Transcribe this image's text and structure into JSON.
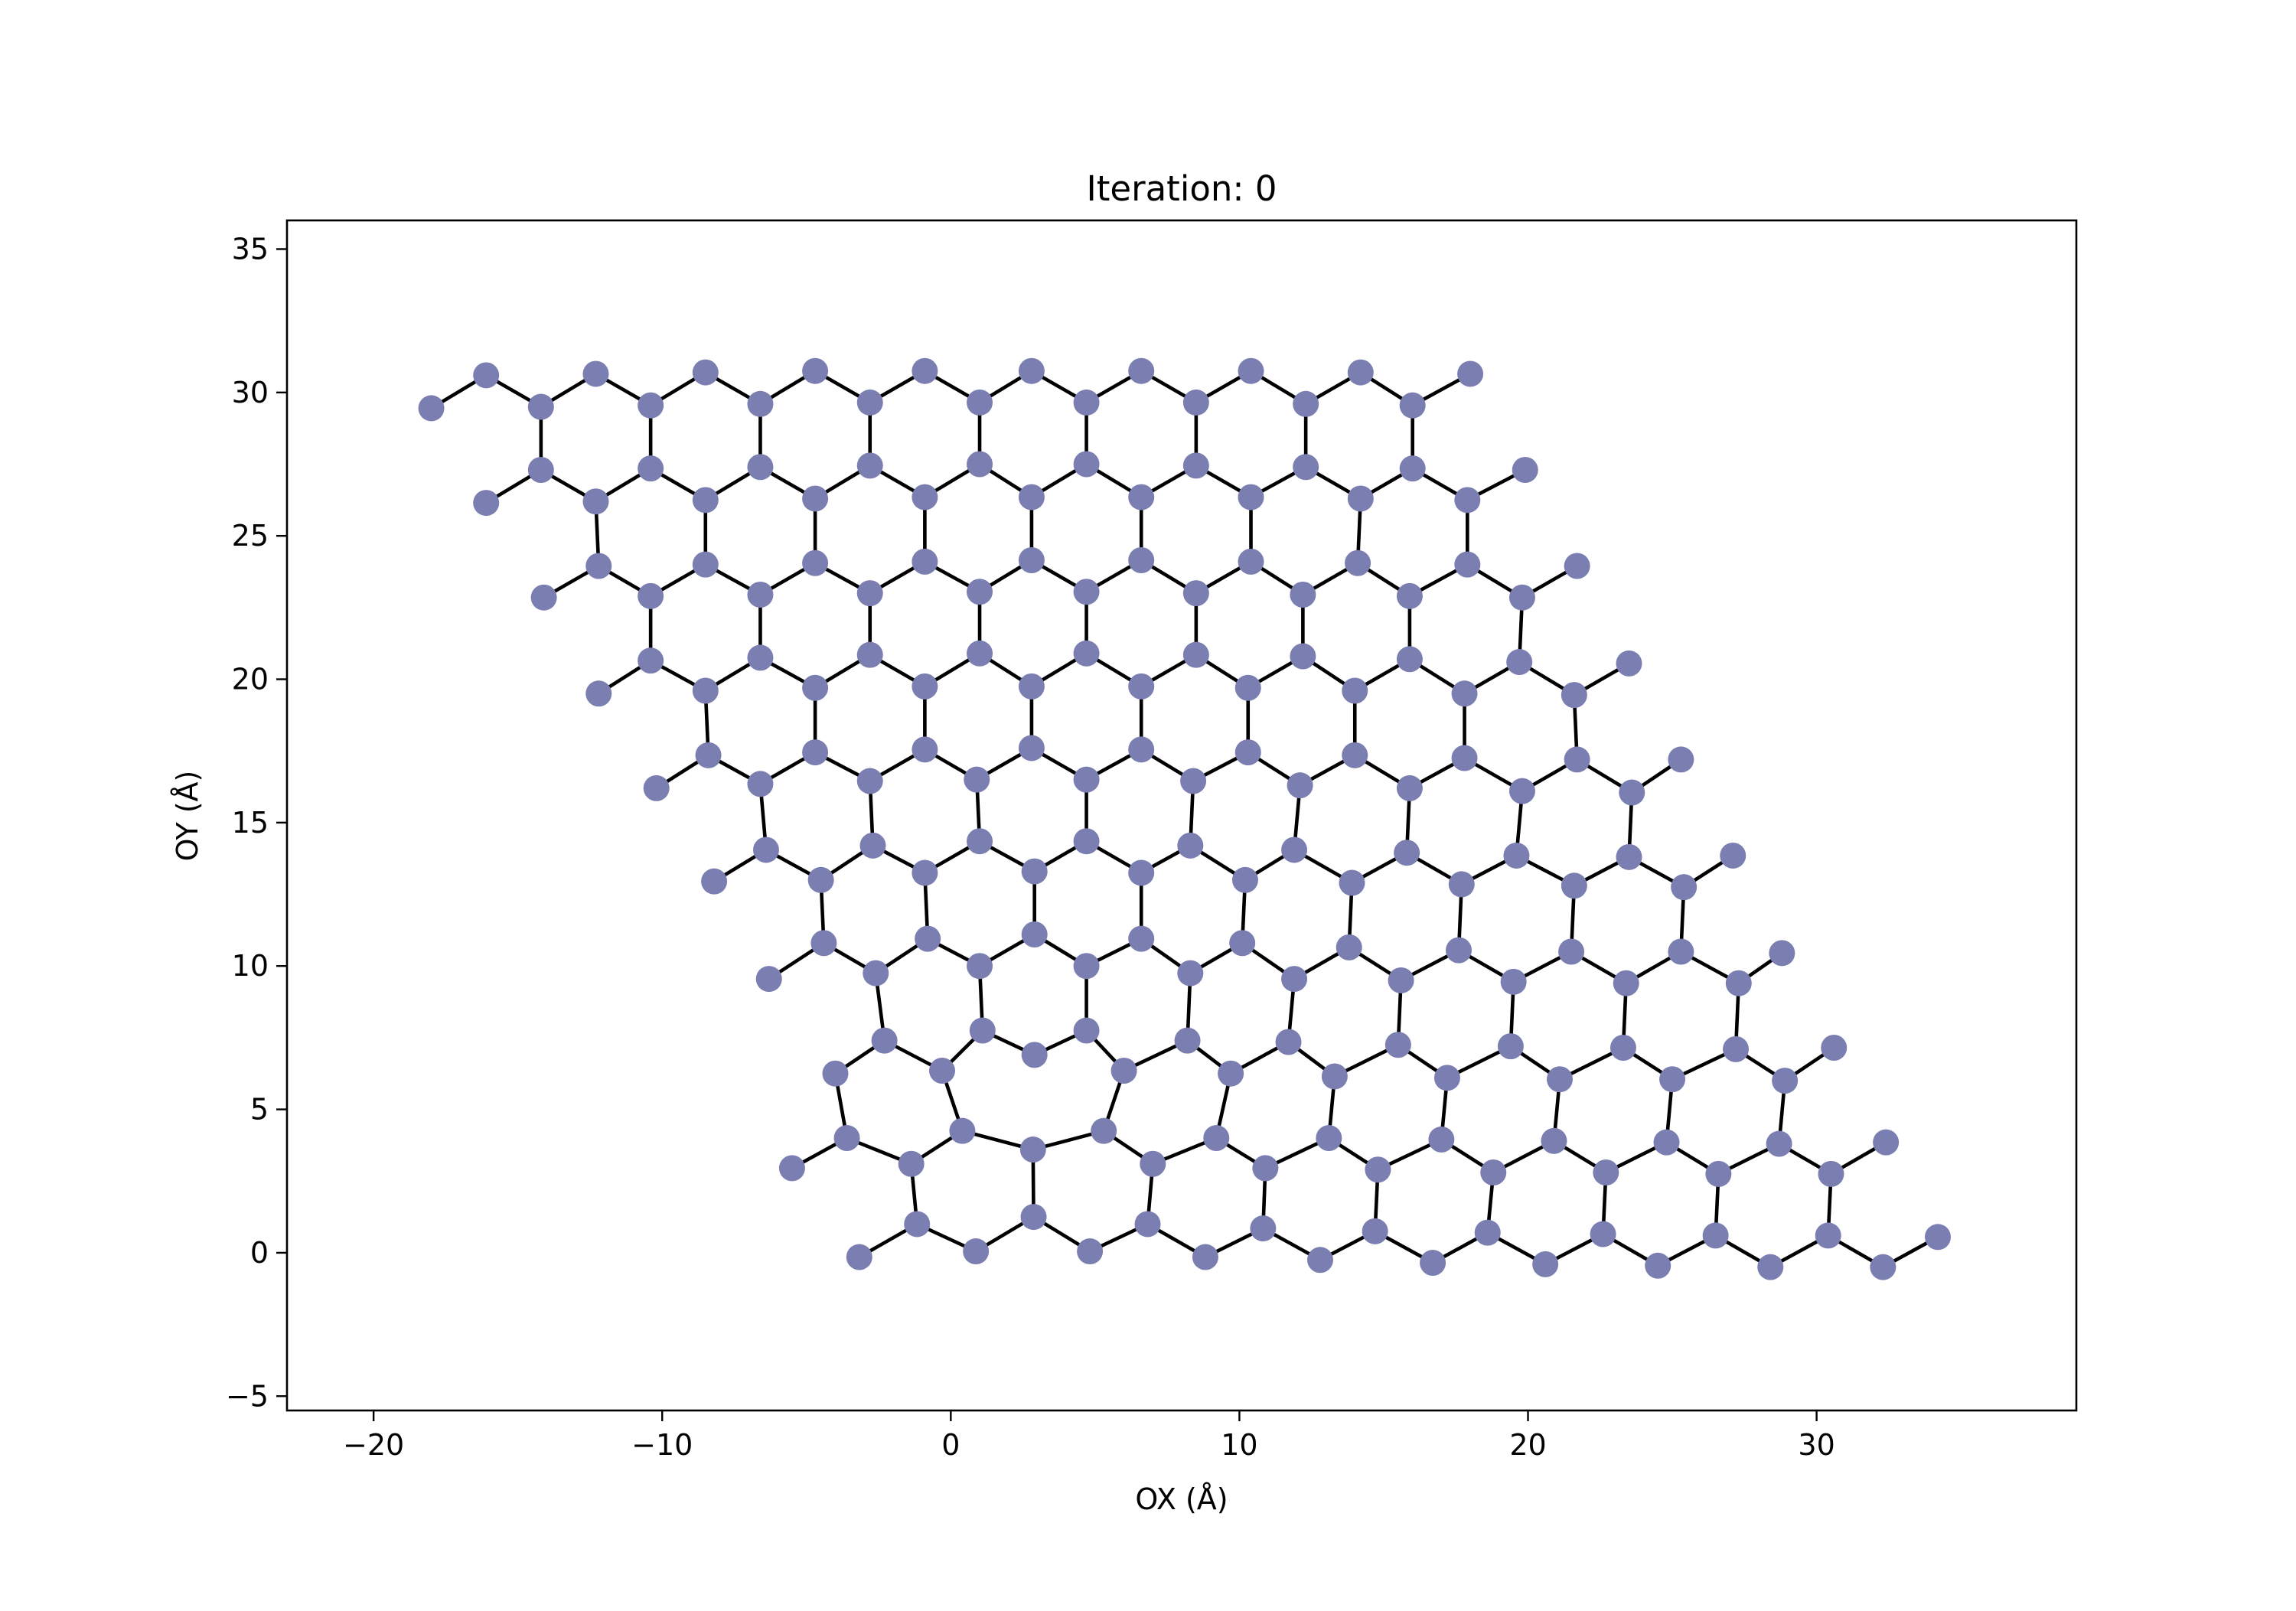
{
  "chart_data": {
    "type": "scatter",
    "title": "Iteration: 0",
    "xlabel": "OX (Å)",
    "ylabel": "OY (Å)",
    "xlim": [
      -23,
      39
    ],
    "ylim": [
      -5.5,
      36
    ],
    "xticks": [
      -20,
      -10,
      0,
      10,
      20,
      30
    ],
    "xtick_labels": [
      "−20",
      "−10",
      "0",
      "10",
      "20",
      "30"
    ],
    "yticks": [
      -5,
      0,
      5,
      10,
      15,
      20,
      25,
      30,
      35
    ],
    "ytick_labels": [
      "−5",
      "0",
      "5",
      "10",
      "15",
      "20",
      "25",
      "30",
      "35"
    ],
    "grid": false,
    "legend": "none",
    "atom_color": "#7b7eb0",
    "bond_color": "#000000",
    "lattice": {
      "bond_length_angstrom": 2.26,
      "a1": [
        3.913,
        0.0
      ],
      "a2": [
        -1.957,
        3.39
      ],
      "rows": 9,
      "columns": 10,
      "description": "zigzag honeycomb sheet with one bond-rotation defect"
    },
    "atoms": [
      [
        -3.17,
        -0.15
      ],
      [
        0.87,
        0.05
      ],
      [
        4.82,
        0.05
      ],
      [
        8.82,
        -0.15
      ],
      [
        12.8,
        -0.25
      ],
      [
        16.7,
        -0.35
      ],
      [
        20.6,
        -0.4
      ],
      [
        24.5,
        -0.45
      ],
      [
        28.4,
        -0.5
      ],
      [
        32.3,
        -0.5
      ],
      [
        34.2,
        0.55
      ],
      [
        -1.17,
        1.0
      ],
      [
        2.87,
        1.25
      ],
      [
        6.82,
        1.0
      ],
      [
        10.82,
        0.85
      ],
      [
        14.7,
        0.75
      ],
      [
        18.6,
        0.7
      ],
      [
        22.6,
        0.65
      ],
      [
        26.5,
        0.6
      ],
      [
        30.4,
        0.6
      ],
      [
        -5.5,
        2.95
      ],
      [
        -1.37,
        3.1
      ],
      [
        2.85,
        3.6
      ],
      [
        7.0,
        3.1
      ],
      [
        10.9,
        2.95
      ],
      [
        14.8,
        2.9
      ],
      [
        18.8,
        2.8
      ],
      [
        22.7,
        2.8
      ],
      [
        26.6,
        2.75
      ],
      [
        30.5,
        2.75
      ],
      [
        32.4,
        3.85
      ],
      [
        -3.6,
        4.0
      ],
      [
        0.4,
        4.25
      ],
      [
        5.3,
        4.25
      ],
      [
        9.2,
        4.0
      ],
      [
        13.1,
        4.0
      ],
      [
        17.0,
        3.95
      ],
      [
        20.9,
        3.9
      ],
      [
        24.8,
        3.85
      ],
      [
        28.7,
        3.8
      ],
      [
        -4.0,
        6.25
      ],
      [
        -0.3,
        6.35
      ],
      [
        6.0,
        6.35
      ],
      [
        9.7,
        6.25
      ],
      [
        13.3,
        6.15
      ],
      [
        17.2,
        6.1
      ],
      [
        21.1,
        6.05
      ],
      [
        25.0,
        6.05
      ],
      [
        28.9,
        6.0
      ],
      [
        -2.3,
        7.4
      ],
      [
        1.1,
        7.75
      ],
      [
        2.9,
        6.9
      ],
      [
        4.7,
        7.75
      ],
      [
        8.2,
        7.4
      ],
      [
        11.7,
        7.35
      ],
      [
        15.5,
        7.25
      ],
      [
        19.4,
        7.2
      ],
      [
        23.3,
        7.15
      ],
      [
        27.2,
        7.1
      ],
      [
        30.6,
        7.15
      ],
      [
        -6.3,
        9.55
      ],
      [
        -2.6,
        9.75
      ],
      [
        1.0,
        10.0
      ],
      [
        4.7,
        10.0
      ],
      [
        8.3,
        9.75
      ],
      [
        11.9,
        9.55
      ],
      [
        15.6,
        9.5
      ],
      [
        19.5,
        9.45
      ],
      [
        23.4,
        9.4
      ],
      [
        27.3,
        9.4
      ],
      [
        -4.4,
        10.8
      ],
      [
        -0.8,
        10.95
      ],
      [
        2.9,
        11.1
      ],
      [
        6.6,
        10.95
      ],
      [
        10.1,
        10.8
      ],
      [
        13.8,
        10.65
      ],
      [
        17.6,
        10.55
      ],
      [
        21.5,
        10.5
      ],
      [
        25.3,
        10.5
      ],
      [
        28.8,
        10.45
      ],
      [
        -8.2,
        12.95
      ],
      [
        -4.5,
        13.0
      ],
      [
        -0.9,
        13.25
      ],
      [
        2.9,
        13.3
      ],
      [
        6.6,
        13.25
      ],
      [
        10.2,
        13.0
      ],
      [
        13.9,
        12.9
      ],
      [
        17.7,
        12.85
      ],
      [
        21.6,
        12.8
      ],
      [
        25.4,
        12.75
      ],
      [
        -6.4,
        14.05
      ],
      [
        -2.7,
        14.2
      ],
      [
        1.0,
        14.35
      ],
      [
        4.7,
        14.35
      ],
      [
        8.3,
        14.2
      ],
      [
        11.9,
        14.05
      ],
      [
        15.8,
        13.95
      ],
      [
        19.6,
        13.85
      ],
      [
        23.5,
        13.8
      ],
      [
        27.1,
        13.85
      ],
      [
        -10.2,
        16.2
      ],
      [
        -6.6,
        16.35
      ],
      [
        -2.8,
        16.45
      ],
      [
        0.9,
        16.5
      ],
      [
        4.7,
        16.5
      ],
      [
        8.4,
        16.45
      ],
      [
        12.1,
        16.3
      ],
      [
        15.9,
        16.2
      ],
      [
        19.8,
        16.1
      ],
      [
        23.6,
        16.05
      ],
      [
        -8.4,
        17.35
      ],
      [
        -4.7,
        17.45
      ],
      [
        -0.9,
        17.55
      ],
      [
        2.8,
        17.6
      ],
      [
        6.6,
        17.55
      ],
      [
        10.3,
        17.45
      ],
      [
        14.0,
        17.35
      ],
      [
        17.8,
        17.25
      ],
      [
        21.7,
        17.2
      ],
      [
        25.3,
        17.2
      ],
      [
        -12.2,
        19.5
      ],
      [
        -8.5,
        19.6
      ],
      [
        -4.7,
        19.7
      ],
      [
        -0.9,
        19.75
      ],
      [
        2.8,
        19.75
      ],
      [
        6.6,
        19.75
      ],
      [
        10.3,
        19.7
      ],
      [
        14.0,
        19.6
      ],
      [
        17.8,
        19.5
      ],
      [
        21.6,
        19.45
      ],
      [
        -10.4,
        20.65
      ],
      [
        -6.6,
        20.75
      ],
      [
        -2.8,
        20.85
      ],
      [
        1.0,
        20.9
      ],
      [
        4.7,
        20.9
      ],
      [
        8.5,
        20.85
      ],
      [
        12.2,
        20.8
      ],
      [
        15.9,
        20.7
      ],
      [
        19.7,
        20.6
      ],
      [
        23.5,
        20.55
      ],
      [
        -14.1,
        22.85
      ],
      [
        -10.4,
        22.9
      ],
      [
        -6.6,
        22.95
      ],
      [
        -2.8,
        23.0
      ],
      [
        1.0,
        23.05
      ],
      [
        4.7,
        23.05
      ],
      [
        8.5,
        23.0
      ],
      [
        12.2,
        22.95
      ],
      [
        15.9,
        22.9
      ],
      [
        19.8,
        22.85
      ],
      [
        -12.2,
        23.95
      ],
      [
        -8.5,
        24.0
      ],
      [
        -4.7,
        24.05
      ],
      [
        -0.9,
        24.1
      ],
      [
        2.8,
        24.15
      ],
      [
        6.6,
        24.15
      ],
      [
        10.4,
        24.1
      ],
      [
        14.1,
        24.05
      ],
      [
        17.9,
        24.0
      ],
      [
        21.7,
        23.95
      ],
      [
        -16.1,
        26.15
      ],
      [
        -12.3,
        26.2
      ],
      [
        -8.5,
        26.25
      ],
      [
        -4.7,
        26.3
      ],
      [
        -0.9,
        26.35
      ],
      [
        2.8,
        26.35
      ],
      [
        6.6,
        26.35
      ],
      [
        10.4,
        26.35
      ],
      [
        14.2,
        26.3
      ],
      [
        17.9,
        26.25
      ],
      [
        -14.2,
        27.3
      ],
      [
        -10.4,
        27.35
      ],
      [
        -6.6,
        27.4
      ],
      [
        -2.8,
        27.45
      ],
      [
        1.0,
        27.5
      ],
      [
        4.7,
        27.5
      ],
      [
        8.5,
        27.45
      ],
      [
        12.3,
        27.4
      ],
      [
        16.0,
        27.35
      ],
      [
        19.9,
        27.3
      ],
      [
        -18.0,
        29.45
      ],
      [
        -14.2,
        29.5
      ],
      [
        -10.4,
        29.55
      ],
      [
        -6.6,
        29.6
      ],
      [
        -2.8,
        29.65
      ],
      [
        1.0,
        29.65
      ],
      [
        4.7,
        29.65
      ],
      [
        8.5,
        29.65
      ],
      [
        12.3,
        29.6
      ],
      [
        16.0,
        29.55
      ],
      [
        -16.1,
        30.6
      ],
      [
        -12.3,
        30.65
      ],
      [
        -8.5,
        30.7
      ],
      [
        -4.7,
        30.75
      ],
      [
        -0.9,
        30.75
      ],
      [
        2.8,
        30.75
      ],
      [
        6.6,
        30.75
      ],
      [
        10.4,
        30.75
      ],
      [
        14.2,
        30.7
      ],
      [
        18.0,
        30.65
      ]
    ]
  }
}
